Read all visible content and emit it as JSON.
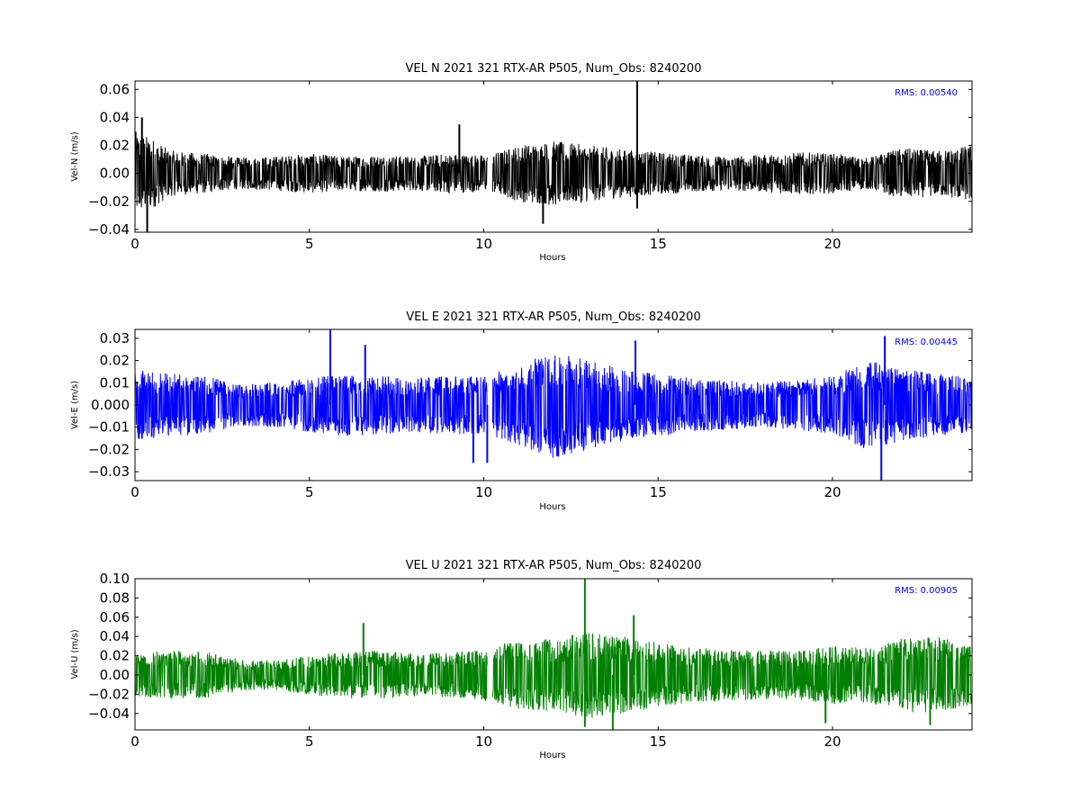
{
  "chart_data": [
    {
      "type": "line",
      "title": "VEL N 2021 321 RTX-AR  P505, Num_Obs: 8240200",
      "xlabel": "Hours",
      "ylabel": "Vel-N (m/s)",
      "xlim": [
        0,
        24
      ],
      "ylim": [
        -0.042,
        0.066
      ],
      "xticks": [
        0,
        5,
        10,
        15,
        20
      ],
      "xtick_labels": [
        "0",
        "5",
        "10",
        "15",
        "20"
      ],
      "yticks": [
        -0.04,
        -0.02,
        0.0,
        0.02,
        0.04,
        0.06
      ],
      "ytick_labels": [
        "−0.04",
        "−0.02",
        "0.00",
        "0.02",
        "0.04",
        "0.06"
      ],
      "annotation": "RMS:  0.00540",
      "color": "#000000",
      "annotation_color": "#0000ff",
      "grid": false,
      "gap_hours": [
        10.1,
        10.25
      ],
      "envelope": {
        "hours": [
          0,
          0.5,
          1,
          2,
          3,
          4,
          5,
          6,
          7,
          8,
          9,
          10,
          10.25,
          11,
          12,
          13,
          14,
          15,
          16,
          17,
          18,
          19,
          20,
          21,
          22,
          23,
          24
        ],
        "amplitude": [
          0.03,
          0.025,
          0.016,
          0.014,
          0.011,
          0.012,
          0.014,
          0.012,
          0.013,
          0.012,
          0.014,
          0.013,
          0.014,
          0.02,
          0.023,
          0.02,
          0.017,
          0.015,
          0.013,
          0.012,
          0.013,
          0.015,
          0.014,
          0.011,
          0.018,
          0.016,
          0.02
        ]
      },
      "spikes": [
        {
          "x": 0.35,
          "y": -0.042
        },
        {
          "x": 0.2,
          "y": 0.04
        },
        {
          "x": 9.3,
          "y": 0.035
        },
        {
          "x": 11.7,
          "y": -0.036
        },
        {
          "x": 14.4,
          "y": 0.066
        },
        {
          "x": 14.4,
          "y": -0.025
        }
      ]
    },
    {
      "type": "line",
      "title": "VEL E 2021 321 RTX-AR  P505, Num_Obs: 8240200",
      "xlabel": "Hours",
      "ylabel": "Vel-E (m/s)",
      "xlim": [
        0,
        24
      ],
      "ylim": [
        -0.034,
        0.034
      ],
      "xticks": [
        0,
        5,
        10,
        15,
        20
      ],
      "xtick_labels": [
        "0",
        "5",
        "10",
        "15",
        "20"
      ],
      "yticks": [
        -0.03,
        -0.02,
        -0.01,
        0.0,
        0.01,
        0.02,
        0.03
      ],
      "ytick_labels": [
        "−0.03",
        "−0.02",
        "−0.01",
        "0.000",
        "0.01",
        "0.02",
        "0.03"
      ],
      "annotation": "RMS:  0.00445",
      "color": "#0000ff",
      "annotation_color": "#0000ff",
      "grid": false,
      "gap_hours": [
        10.1,
        10.25
      ],
      "envelope": {
        "hours": [
          0,
          0.5,
          1,
          2,
          3,
          4,
          5,
          6,
          7,
          8,
          9,
          10,
          10.25,
          11,
          12,
          13,
          14,
          15,
          16,
          17,
          18,
          19,
          20,
          21,
          22,
          23,
          24
        ],
        "amplitude": [
          0.016,
          0.015,
          0.014,
          0.013,
          0.009,
          0.01,
          0.012,
          0.014,
          0.013,
          0.012,
          0.013,
          0.013,
          0.014,
          0.018,
          0.024,
          0.02,
          0.016,
          0.014,
          0.012,
          0.011,
          0.01,
          0.011,
          0.013,
          0.02,
          0.016,
          0.014,
          0.012
        ]
      },
      "spikes": [
        {
          "x": 5.6,
          "y": 0.034
        },
        {
          "x": 6.6,
          "y": 0.027
        },
        {
          "x": 9.7,
          "y": -0.026
        },
        {
          "x": 10.1,
          "y": -0.026
        },
        {
          "x": 14.35,
          "y": 0.029
        },
        {
          "x": 21.4,
          "y": -0.034
        },
        {
          "x": 21.5,
          "y": 0.031
        }
      ]
    },
    {
      "type": "line",
      "title": "VEL U 2021 321 RTX-AR  P505, Num_Obs: 8240200",
      "xlabel": "Hours",
      "ylabel": "Vel-U (m/s)",
      "xlim": [
        0,
        24
      ],
      "ylim": [
        -0.057,
        0.1
      ],
      "xticks": [
        0,
        5,
        10,
        15,
        20
      ],
      "xtick_labels": [
        "0",
        "5",
        "10",
        "15",
        "20"
      ],
      "yticks": [
        -0.04,
        -0.02,
        0.0,
        0.02,
        0.04,
        0.06,
        0.08,
        0.1
      ],
      "ytick_labels": [
        "−0.04",
        "−0.02",
        "0.00",
        "0.02",
        "0.04",
        "0.06",
        "0.08",
        "0.10"
      ],
      "annotation": "RMS:  0.00905",
      "color": "#008000",
      "annotation_color": "#0000ff",
      "grid": false,
      "gap_hours": [
        10.1,
        10.25
      ],
      "envelope": {
        "hours": [
          0,
          0.5,
          1,
          2,
          3,
          4,
          5,
          6,
          7,
          8,
          9,
          10,
          10.25,
          11,
          12,
          13,
          14,
          15,
          16,
          17,
          18,
          19,
          20,
          21,
          22,
          23,
          24
        ],
        "amplitude": [
          0.025,
          0.024,
          0.025,
          0.024,
          0.016,
          0.015,
          0.02,
          0.024,
          0.025,
          0.022,
          0.023,
          0.026,
          0.03,
          0.036,
          0.037,
          0.045,
          0.04,
          0.033,
          0.028,
          0.027,
          0.025,
          0.025,
          0.03,
          0.028,
          0.038,
          0.04,
          0.03
        ]
      },
      "spikes": [
        {
          "x": 6.55,
          "y": 0.054
        },
        {
          "x": 12.9,
          "y": 0.1
        },
        {
          "x": 12.9,
          "y": -0.054
        },
        {
          "x": 13.7,
          "y": -0.057
        },
        {
          "x": 14.3,
          "y": 0.062
        },
        {
          "x": 19.8,
          "y": -0.05
        },
        {
          "x": 22.8,
          "y": -0.052
        }
      ]
    }
  ]
}
